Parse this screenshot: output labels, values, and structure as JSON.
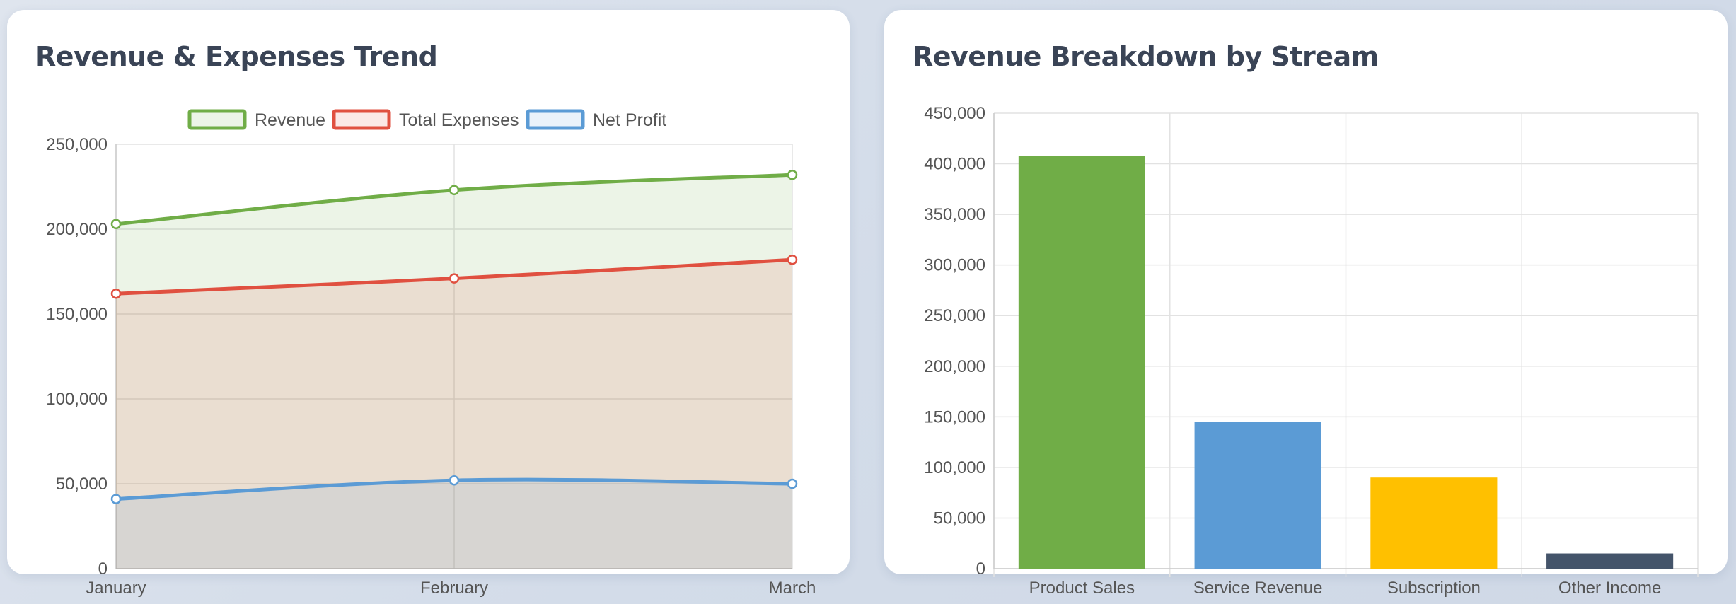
{
  "panels": {
    "left": {
      "title": "Revenue & Expenses Trend"
    },
    "right": {
      "title": "Revenue Breakdown by Stream"
    }
  },
  "colors": {
    "revenue": "#70ad47",
    "expenses": "#e05040",
    "profit": "#5b9bd5",
    "product_sales": "#70ad47",
    "service_revenue": "#5b9bd5",
    "subscription": "#ffc000",
    "other_income": "#44546a"
  },
  "chart_data": [
    {
      "type": "line",
      "title": "Revenue & Expenses Trend",
      "categories": [
        "January",
        "February",
        "March"
      ],
      "series": [
        {
          "name": "Revenue",
          "values": [
            203000,
            223000,
            232000
          ]
        },
        {
          "name": "Total Expenses",
          "values": [
            162000,
            171000,
            182000
          ]
        },
        {
          "name": "Net Profit",
          "values": [
            41000,
            52000,
            50000
          ]
        }
      ],
      "ylim": [
        0,
        250000
      ],
      "yticks": [
        "0",
        "50,000",
        "100,000",
        "150,000",
        "200,000",
        "250,000"
      ],
      "legend": "top",
      "grid": true,
      "fill": true
    },
    {
      "type": "bar",
      "title": "Revenue Breakdown by Stream",
      "categories": [
        "Product Sales",
        "Service Revenue",
        "Subscription",
        "Other Income"
      ],
      "values": [
        408000,
        145000,
        90000,
        15000
      ],
      "ylim": [
        0,
        450000
      ],
      "yticks": [
        "0",
        "50,000",
        "100,000",
        "150,000",
        "200,000",
        "250,000",
        "300,000",
        "350,000",
        "400,000",
        "450,000"
      ],
      "grid": true
    }
  ]
}
